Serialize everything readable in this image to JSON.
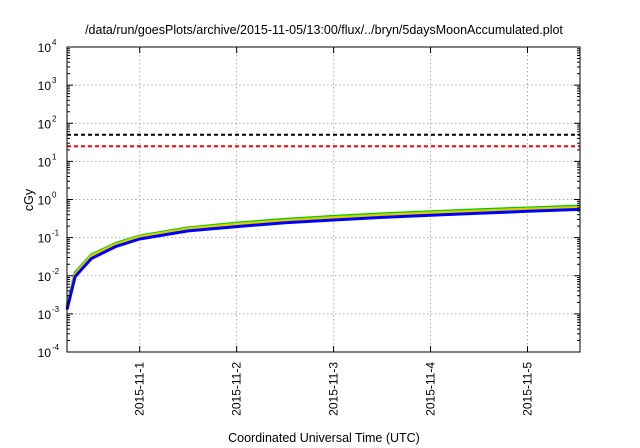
{
  "chart_data": {
    "type": "line",
    "title": "/data/run/goesPlots/archive/2015-11-05/13:00/flux/../bryn/5daysMoonAccumulated.plot",
    "xlabel": "Coordinated Universal Time (UTC)",
    "ylabel": "cGy",
    "x_range": [
      "2015-10-31T06:00",
      "2015-11-05T13:00"
    ],
    "x_ticks": [
      "2015-11-1",
      "2015-11-2",
      "2015-11-3",
      "2015-11-4",
      "2015-11-5"
    ],
    "y_scale": "log",
    "ylim": [
      0.0001,
      10000
    ],
    "y_ticks": [
      {
        "base": "10",
        "exp": "-4"
      },
      {
        "base": "10",
        "exp": "-3"
      },
      {
        "base": "10",
        "exp": "-2"
      },
      {
        "base": "10",
        "exp": "-1"
      },
      {
        "base": "10",
        "exp": "0"
      },
      {
        "base": "10",
        "exp": "1"
      },
      {
        "base": "10",
        "exp": "2"
      },
      {
        "base": "10",
        "exp": "3"
      },
      {
        "base": "10",
        "exp": "4"
      }
    ],
    "grid": true,
    "thresholds": [
      {
        "value": 50,
        "color": "#000000",
        "style": "dashed"
      },
      {
        "value": 25,
        "color": "#ff0000",
        "style": "dashed"
      }
    ],
    "series": [
      {
        "color": "#00cc00",
        "x": [
          "2015-10-31T06:00",
          "2015-10-31T08:00",
          "2015-10-31T12:00",
          "2015-10-31T18:00",
          "2015-11-01T00:00",
          "2015-11-01T12:00",
          "2015-11-02T00:00",
          "2015-11-02T12:00",
          "2015-11-03T00:00",
          "2015-11-03T12:00",
          "2015-11-04T00:00",
          "2015-11-04T12:00",
          "2015-11-05T00:00",
          "2015-11-05T13:00"
        ],
        "y": [
          0.0016,
          0.012,
          0.035,
          0.07,
          0.11,
          0.18,
          0.24,
          0.3,
          0.36,
          0.42,
          0.48,
          0.54,
          0.6,
          0.67
        ]
      },
      {
        "color": "#ddcc00",
        "x": [
          "2015-10-31T06:00",
          "2015-10-31T08:00",
          "2015-10-31T12:00",
          "2015-10-31T18:00",
          "2015-11-01T00:00",
          "2015-11-01T12:00",
          "2015-11-02T00:00",
          "2015-11-02T12:00",
          "2015-11-03T00:00",
          "2015-11-03T12:00",
          "2015-11-04T00:00",
          "2015-11-04T12:00",
          "2015-11-05T00:00",
          "2015-11-05T13:00"
        ],
        "y": [
          0.0015,
          0.011,
          0.033,
          0.066,
          0.105,
          0.17,
          0.225,
          0.28,
          0.335,
          0.39,
          0.445,
          0.5,
          0.56,
          0.62
        ]
      },
      {
        "color": "#0000ff",
        "x": [
          "2015-10-31T06:00",
          "2015-10-31T08:00",
          "2015-10-31T12:00",
          "2015-10-31T18:00",
          "2015-11-01T00:00",
          "2015-11-01T12:00",
          "2015-11-02T00:00",
          "2015-11-02T12:00",
          "2015-11-03T00:00",
          "2015-11-03T12:00",
          "2015-11-04T00:00",
          "2015-11-04T12:00",
          "2015-11-05T00:00",
          "2015-11-05T13:00"
        ],
        "y": [
          0.0013,
          0.0095,
          0.028,
          0.058,
          0.092,
          0.15,
          0.195,
          0.245,
          0.29,
          0.34,
          0.385,
          0.435,
          0.49,
          0.55
        ]
      }
    ]
  }
}
